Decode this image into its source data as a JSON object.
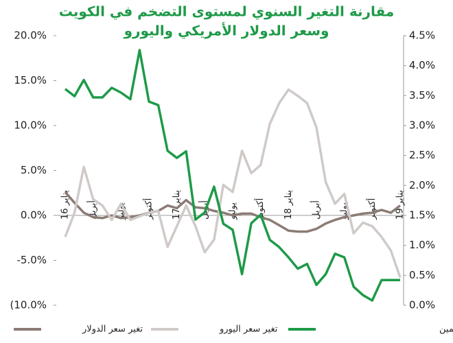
{
  "chart_data": {
    "type": "line",
    "title": [
      "مقارنة التغير السنوي لمستوى التضخم في الكويت",
      "وسعر الدولار الأمريكي واليورو"
    ],
    "categories": [
      "يناير 16",
      null,
      null,
      "أبريل",
      null,
      null,
      "يوليو",
      null,
      null,
      "أكتوبر",
      null,
      null,
      "يناير 17",
      null,
      null,
      "أبريل",
      null,
      null,
      "يوليو",
      null,
      null,
      "أكتوبر",
      null,
      null,
      "يناير 18",
      null,
      null,
      "أبريل",
      null,
      null,
      "يوليو",
      null,
      null,
      "أكتوبر",
      null,
      null,
      "يناير 19"
    ],
    "series": [
      {
        "name": "تغير سعر الدولار",
        "color": "#8c7b75",
        "values": [
          2.6,
          1.4,
          0.3,
          -0.2,
          -0.3,
          0,
          -0.3,
          -0.2,
          0,
          0.3,
          0.5,
          1.1,
          0.8,
          1.7,
          0.9,
          0.8,
          0.5,
          0.3,
          0,
          0.2,
          0.2,
          -0.2,
          -0.5,
          -1.1,
          -1.7,
          -1.8,
          -1.8,
          -1.5,
          -0.9,
          -0.5,
          -0.2,
          0,
          0.2,
          0.3,
          0.6,
          0.3,
          1.1
        ]
      },
      {
        "name": "تغير سعر اليورو",
        "color": "#cfcac8",
        "values": [
          -2.4,
          0.3,
          5.4,
          1.8,
          1.1,
          -0.5,
          1.3,
          -0.5,
          -0.1,
          0.3,
          0.5,
          -3.5,
          -1.2,
          1.1,
          -1.2,
          -4.1,
          -2.7,
          3.4,
          2.6,
          7.2,
          4.7,
          5.6,
          10.2,
          12.5,
          14.0,
          13.3,
          12.5,
          9.8,
          3.7,
          1.3,
          2.4,
          -2.0,
          -0.8,
          -1.2,
          -2.4,
          -3.9,
          -6.9
        ]
      },
      {
        "name": "مستوى التضخم - يمين",
        "color": "#1e9a48",
        "axis": "y2",
        "values": [
          3.61,
          3.49,
          3.76,
          3.47,
          3.47,
          3.63,
          3.55,
          3.44,
          4.26,
          3.4,
          3.34,
          2.58,
          2.46,
          2.57,
          1.43,
          1.55,
          1.98,
          1.36,
          1.26,
          0.52,
          1.37,
          1.51,
          1.09,
          0.97,
          0.8,
          0.61,
          0.69,
          0.34,
          0.52,
          0.86,
          0.8,
          0.31,
          0.17,
          0.08,
          0.42,
          0.42,
          0.42
        ]
      }
    ],
    "ylim": [
      -10,
      20
    ],
    "yticks": [
      {
        "value": -10,
        "label": "(10.0%"
      },
      {
        "value": -5,
        "label": "-5.0%"
      },
      {
        "value": 0,
        "label": "0.0%"
      },
      {
        "value": 5,
        "label": "5.0%"
      },
      {
        "value": 10,
        "label": "10.0%"
      },
      {
        "value": 15,
        "label": "15.0%"
      },
      {
        "value": 20,
        "label": "20.0%"
      }
    ],
    "y2lim": [
      0,
      4.5
    ],
    "y2ticks": [
      {
        "value": 0,
        "label": "0.0%"
      },
      {
        "value": 0.5,
        "label": "0.5%"
      },
      {
        "value": 1,
        "label": "1.0%"
      },
      {
        "value": 1.5,
        "label": "1.5%"
      },
      {
        "value": 2,
        "label": "2.0%"
      },
      {
        "value": 2.5,
        "label": "2.5%"
      },
      {
        "value": 3,
        "label": "3.0%"
      },
      {
        "value": 3.5,
        "label": "3.5%"
      },
      {
        "value": 4,
        "label": "4.0%"
      },
      {
        "value": 4.5,
        "label": "4.5%"
      }
    ],
    "grid": false
  }
}
